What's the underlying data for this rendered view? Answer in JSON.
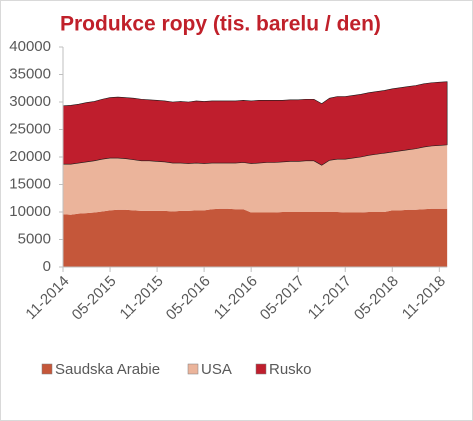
{
  "chart_data": {
    "type": "stacked-area",
    "title": "Produkce ropy (tis. barelu  / den)",
    "categories": [
      "11-2014",
      null,
      null,
      null,
      null,
      null,
      "05-2015",
      null,
      null,
      null,
      null,
      null,
      "11-2015",
      null,
      null,
      null,
      null,
      null,
      "05-2016",
      null,
      null,
      null,
      null,
      null,
      "11-2016",
      null,
      null,
      null,
      null,
      null,
      "05-2017",
      null,
      null,
      null,
      null,
      null,
      "11-2017",
      null,
      null,
      null,
      null,
      null,
      "05-2018",
      null,
      null,
      null,
      null,
      null,
      "11-2018",
      null
    ],
    "series": [
      {
        "name": "Saudska Arabie",
        "color": "#c5573a",
        "values": [
          9600,
          9500,
          9700,
          9800,
          9900,
          10100,
          10300,
          10400,
          10400,
          10300,
          10200,
          10200,
          10200,
          10200,
          10100,
          10200,
          10200,
          10300,
          10300,
          10500,
          10600,
          10600,
          10500,
          10500,
          9900,
          9900,
          9900,
          9900,
          10000,
          10000,
          10000,
          10000,
          10000,
          10000,
          10000,
          10000,
          9900,
          9900,
          9900,
          10000,
          10000,
          10000,
          10300,
          10300,
          10400,
          10400,
          10500,
          10600,
          10600,
          10600
        ]
      },
      {
        "name": "USA",
        "color": "#ebb49b",
        "values": [
          9100,
          9200,
          9200,
          9300,
          9400,
          9500,
          9500,
          9400,
          9300,
          9200,
          9100,
          9100,
          9000,
          8900,
          8800,
          8700,
          8600,
          8600,
          8500,
          8400,
          8300,
          8300,
          8400,
          8500,
          8900,
          9000,
          9100,
          9100,
          9100,
          9200,
          9200,
          9300,
          9300,
          8500,
          9400,
          9600,
          9700,
          9900,
          10100,
          10300,
          10500,
          10700,
          10600,
          10800,
          10900,
          11100,
          11300,
          11400,
          11500,
          11600
        ]
      },
      {
        "name": "Rusko",
        "color": "#bf1e2d",
        "values": [
          10600,
          10700,
          10700,
          10800,
          10800,
          10900,
          11000,
          11100,
          11100,
          11200,
          11200,
          11100,
          11100,
          11100,
          11100,
          11200,
          11200,
          11300,
          11300,
          11300,
          11300,
          11300,
          11300,
          11300,
          11400,
          11400,
          11300,
          11300,
          11200,
          11200,
          11200,
          11200,
          11200,
          11200,
          11300,
          11400,
          11400,
          11400,
          11400,
          11400,
          11400,
          11400,
          11500,
          11500,
          11500,
          11500,
          11500,
          11500,
          11500,
          11500
        ]
      }
    ],
    "ylim": [
      0,
      40000
    ],
    "yticks": [
      0,
      5000,
      10000,
      15000,
      20000,
      25000,
      30000,
      35000,
      40000
    ],
    "grid": false,
    "legend": "bottom"
  }
}
